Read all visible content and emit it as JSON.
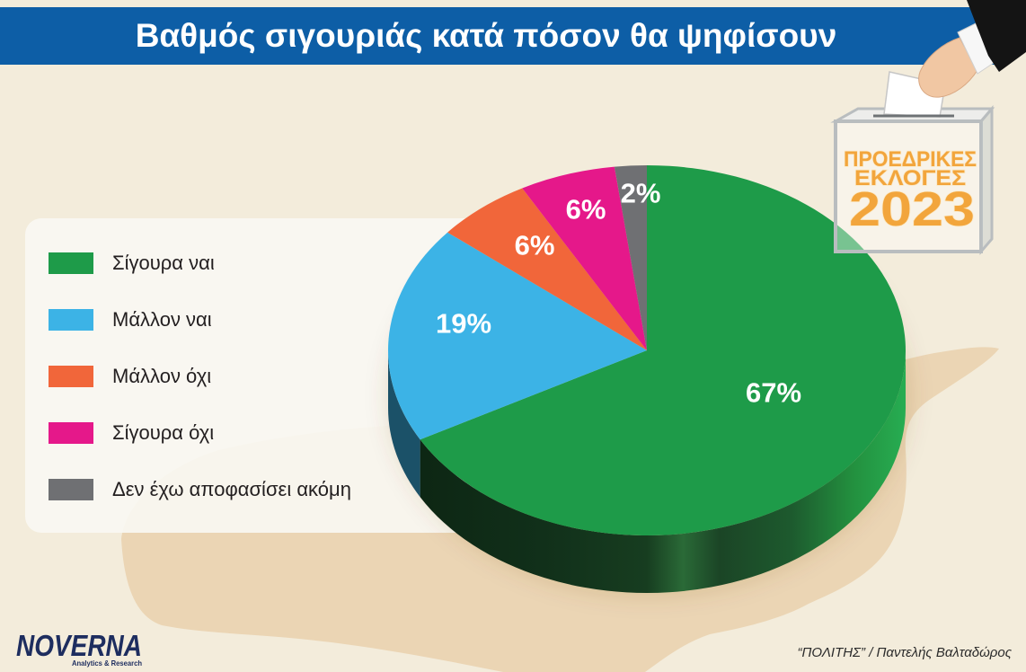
{
  "theme": {
    "background": "#f3ecdb",
    "banner_color": "#0d5ea6",
    "map_color": "#ebd5b4",
    "badge_text_color": "#f2a53c",
    "logo_color": "#1d2d5f"
  },
  "icons": {
    "ballot_box": "ballot-box-icon",
    "hand": "hand-icon",
    "ballot_paper": "ballot-paper-icon"
  },
  "badge": {
    "line1": "ΠΡΟΕΔΡΙΚΕΣ",
    "line2": "ΕΚΛΟΓΕΣ",
    "year": "2023"
  },
  "logo": {
    "name": "NOVERNA",
    "tagline": "Analytics & Research"
  },
  "footer": {
    "credit": "“ΠΟΛΙΤΗΣ” / Παντελής Βαλταδώρος"
  },
  "chart_data": {
    "type": "pie",
    "3d": true,
    "title": "Βαθμός σιγουριάς κατά πόσον θα ψηφίσουν",
    "categories": [
      "Σίγουρα ναι",
      "Μάλλον ναι",
      "Μάλλον όχι",
      "Σίγουρα όχι",
      "Δεν έχω αποφασίσει ακόμη"
    ],
    "values": [
      67,
      19,
      6,
      6,
      2
    ],
    "labels": [
      "67%",
      "19%",
      "6%",
      "6%",
      "2%"
    ],
    "colors": [
      "#1e9b49",
      "#3cb3e6",
      "#f1663a",
      "#e5188a",
      "#6f7073"
    ],
    "legend": "left"
  }
}
